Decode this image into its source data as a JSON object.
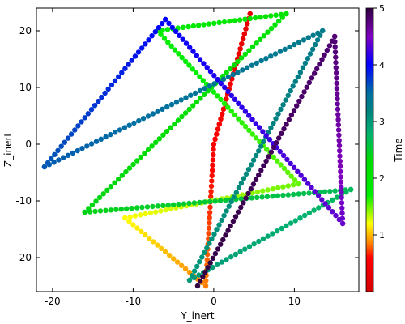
{
  "chart_data": {
    "type": "scatter",
    "xlabel": "Y_inert",
    "ylabel": "Z_inert",
    "xlim": [
      -22,
      18
    ],
    "ylim": [
      -26,
      24
    ],
    "xticks": [
      -20,
      -10,
      0,
      10
    ],
    "yticks": [
      -20,
      -10,
      0,
      10,
      20
    ],
    "colorbar": {
      "label": "Time",
      "range": [
        0,
        5
      ],
      "ticks": [
        1,
        2,
        3,
        4,
        5
      ],
      "colormap": "prism-like",
      "stops": [
        {
          "t": 0.0,
          "color": "#d40000"
        },
        {
          "t": 0.6,
          "color": "#ff0000"
        },
        {
          "t": 0.85,
          "color": "#ff8000"
        },
        {
          "t": 1.2,
          "color": "#ffff00"
        },
        {
          "t": 1.7,
          "color": "#00ee00"
        },
        {
          "t": 2.3,
          "color": "#00dd00"
        },
        {
          "t": 2.8,
          "color": "#00b070"
        },
        {
          "t": 3.2,
          "color": "#008080"
        },
        {
          "t": 3.5,
          "color": "#0070a0"
        },
        {
          "t": 4.0,
          "color": "#0000ff"
        },
        {
          "t": 4.5,
          "color": "#8000c0"
        },
        {
          "t": 5.0,
          "color": "#300040"
        }
      ]
    },
    "marker": "circle",
    "series": [
      {
        "time": [
          0.0,
          0.25
        ],
        "x": [
          0,
          4.5
        ],
        "y": [
          0,
          23
        ]
      },
      {
        "time": [
          0.25,
          0.55
        ],
        "x": [
          4.5,
          0
        ],
        "y": [
          23,
          0
        ]
      },
      {
        "time": [
          0.55,
          0.85
        ],
        "x": [
          0,
          -1
        ],
        "y": [
          0,
          -25
        ]
      },
      {
        "time": [
          0.85,
          1.2
        ],
        "x": [
          -1,
          -11
        ],
        "y": [
          -25,
          -13
        ]
      },
      {
        "time": [
          1.2,
          1.5
        ],
        "x": [
          -11,
          10.5
        ],
        "y": [
          -13,
          -7
        ]
      },
      {
        "time": [
          1.5,
          1.8
        ],
        "x": [
          10.5,
          -7
        ],
        "y": [
          -7,
          20
        ]
      },
      {
        "time": [
          1.8,
          2.1
        ],
        "x": [
          -7,
          9
        ],
        "y": [
          20,
          23
        ]
      },
      {
        "time": [
          2.1,
          2.4
        ],
        "x": [
          9,
          -16
        ],
        "y": [
          23,
          -12
        ]
      },
      {
        "time": [
          2.4,
          2.7
        ],
        "x": [
          -16,
          17
        ],
        "y": [
          -12,
          -8
        ]
      },
      {
        "time": [
          2.7,
          3.0
        ],
        "x": [
          17,
          -3
        ],
        "y": [
          -8,
          -24
        ]
      },
      {
        "time": [
          3.0,
          3.3
        ],
        "x": [
          -3,
          13.5
        ],
        "y": [
          -24,
          20
        ]
      },
      {
        "time": [
          3.3,
          3.6
        ],
        "x": [
          13.5,
          -21
        ],
        "y": [
          20,
          -4
        ]
      },
      {
        "time": [
          3.6,
          4.0
        ],
        "x": [
          -21,
          -6
        ],
        "y": [
          -4,
          22
        ]
      },
      {
        "time": [
          4.0,
          4.4
        ],
        "x": [
          -6,
          16
        ],
        "y": [
          22,
          -14
        ]
      },
      {
        "time": [
          4.4,
          4.8
        ],
        "x": [
          16,
          15
        ],
        "y": [
          -14,
          19
        ]
      },
      {
        "time": [
          4.8,
          5.0
        ],
        "x": [
          15,
          -2
        ],
        "y": [
          19,
          -25
        ]
      }
    ]
  }
}
